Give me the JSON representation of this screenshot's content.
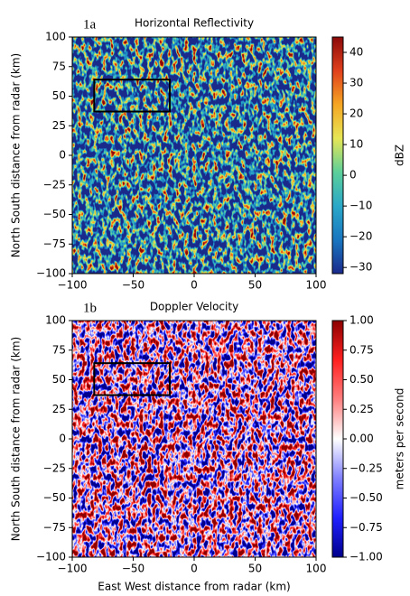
{
  "chart_data": [
    {
      "type": "heatmap",
      "panel_label": "1a",
      "title": "Horizontal Reflectivity",
      "ylabel": "North South distance from radar (km)",
      "xlim": [
        -100,
        100
      ],
      "ylim": [
        -100,
        100
      ],
      "xticks": [
        {
          "value": -100,
          "label": "−100"
        },
        {
          "value": -50,
          "label": "−50"
        },
        0,
        50,
        100
      ],
      "yticks": [
        {
          "value": -100,
          "label": "−100"
        },
        {
          "value": -75,
          "label": "−75"
        },
        {
          "value": -50,
          "label": "−50"
        },
        {
          "value": -25,
          "label": "−25"
        },
        0,
        25,
        50,
        75,
        100
      ],
      "box": {
        "x": [
          -82,
          -20
        ],
        "y": [
          37,
          64
        ]
      },
      "colorbar": {
        "label": "dBZ",
        "lim": [
          -32,
          45
        ],
        "ticks": [
          {
            "value": -30,
            "label": "−30"
          },
          {
            "value": -20,
            "label": "−20"
          },
          {
            "value": -10,
            "label": "−10"
          },
          0,
          10,
          20,
          30,
          40
        ],
        "colormap": [
          "#1a2a8c",
          "#1976c0",
          "#2aa8c8",
          "#5ccf9a",
          "#e6e655",
          "#f5a623",
          "#e0401c",
          "#8c0a0a"
        ]
      }
    },
    {
      "type": "heatmap",
      "panel_label": "1b",
      "title": "Doppler Velocity",
      "xlabel": "East West distance from radar (km)",
      "ylabel": "North South distance from radar (km)",
      "xlim": [
        -100,
        100
      ],
      "ylim": [
        -100,
        100
      ],
      "xticks": [
        {
          "value": -100,
          "label": "−100"
        },
        {
          "value": -50,
          "label": "−50"
        },
        0,
        50,
        100
      ],
      "yticks": [
        {
          "value": -100,
          "label": "−100"
        },
        {
          "value": -75,
          "label": "−75"
        },
        {
          "value": -50,
          "label": "−50"
        },
        {
          "value": -25,
          "label": "−25"
        },
        0,
        25,
        50,
        75,
        100
      ],
      "box": {
        "x": [
          -82,
          -20
        ],
        "y": [
          37,
          64
        ]
      },
      "colorbar": {
        "label": "meters per second",
        "lim": [
          -1,
          1
        ],
        "ticks": [
          {
            "value": -1,
            "label": "−1.00"
          },
          {
            "value": -0.75,
            "label": "−0.75"
          },
          {
            "value": -0.5,
            "label": "−0.50"
          },
          {
            "value": -0.25,
            "label": "−0.25"
          },
          {
            "value": 0,
            "label": "0.00"
          },
          {
            "value": 0.25,
            "label": "0.25"
          },
          {
            "value": 0.5,
            "label": "0.50"
          },
          {
            "value": 0.75,
            "label": "0.75"
          },
          {
            "value": 1,
            "label": "1.00"
          }
        ],
        "colormap": [
          "#00008c",
          "#2020ff",
          "#8080ff",
          "#ffffff",
          "#ff8080",
          "#ff2020",
          "#8c0000"
        ]
      }
    }
  ]
}
